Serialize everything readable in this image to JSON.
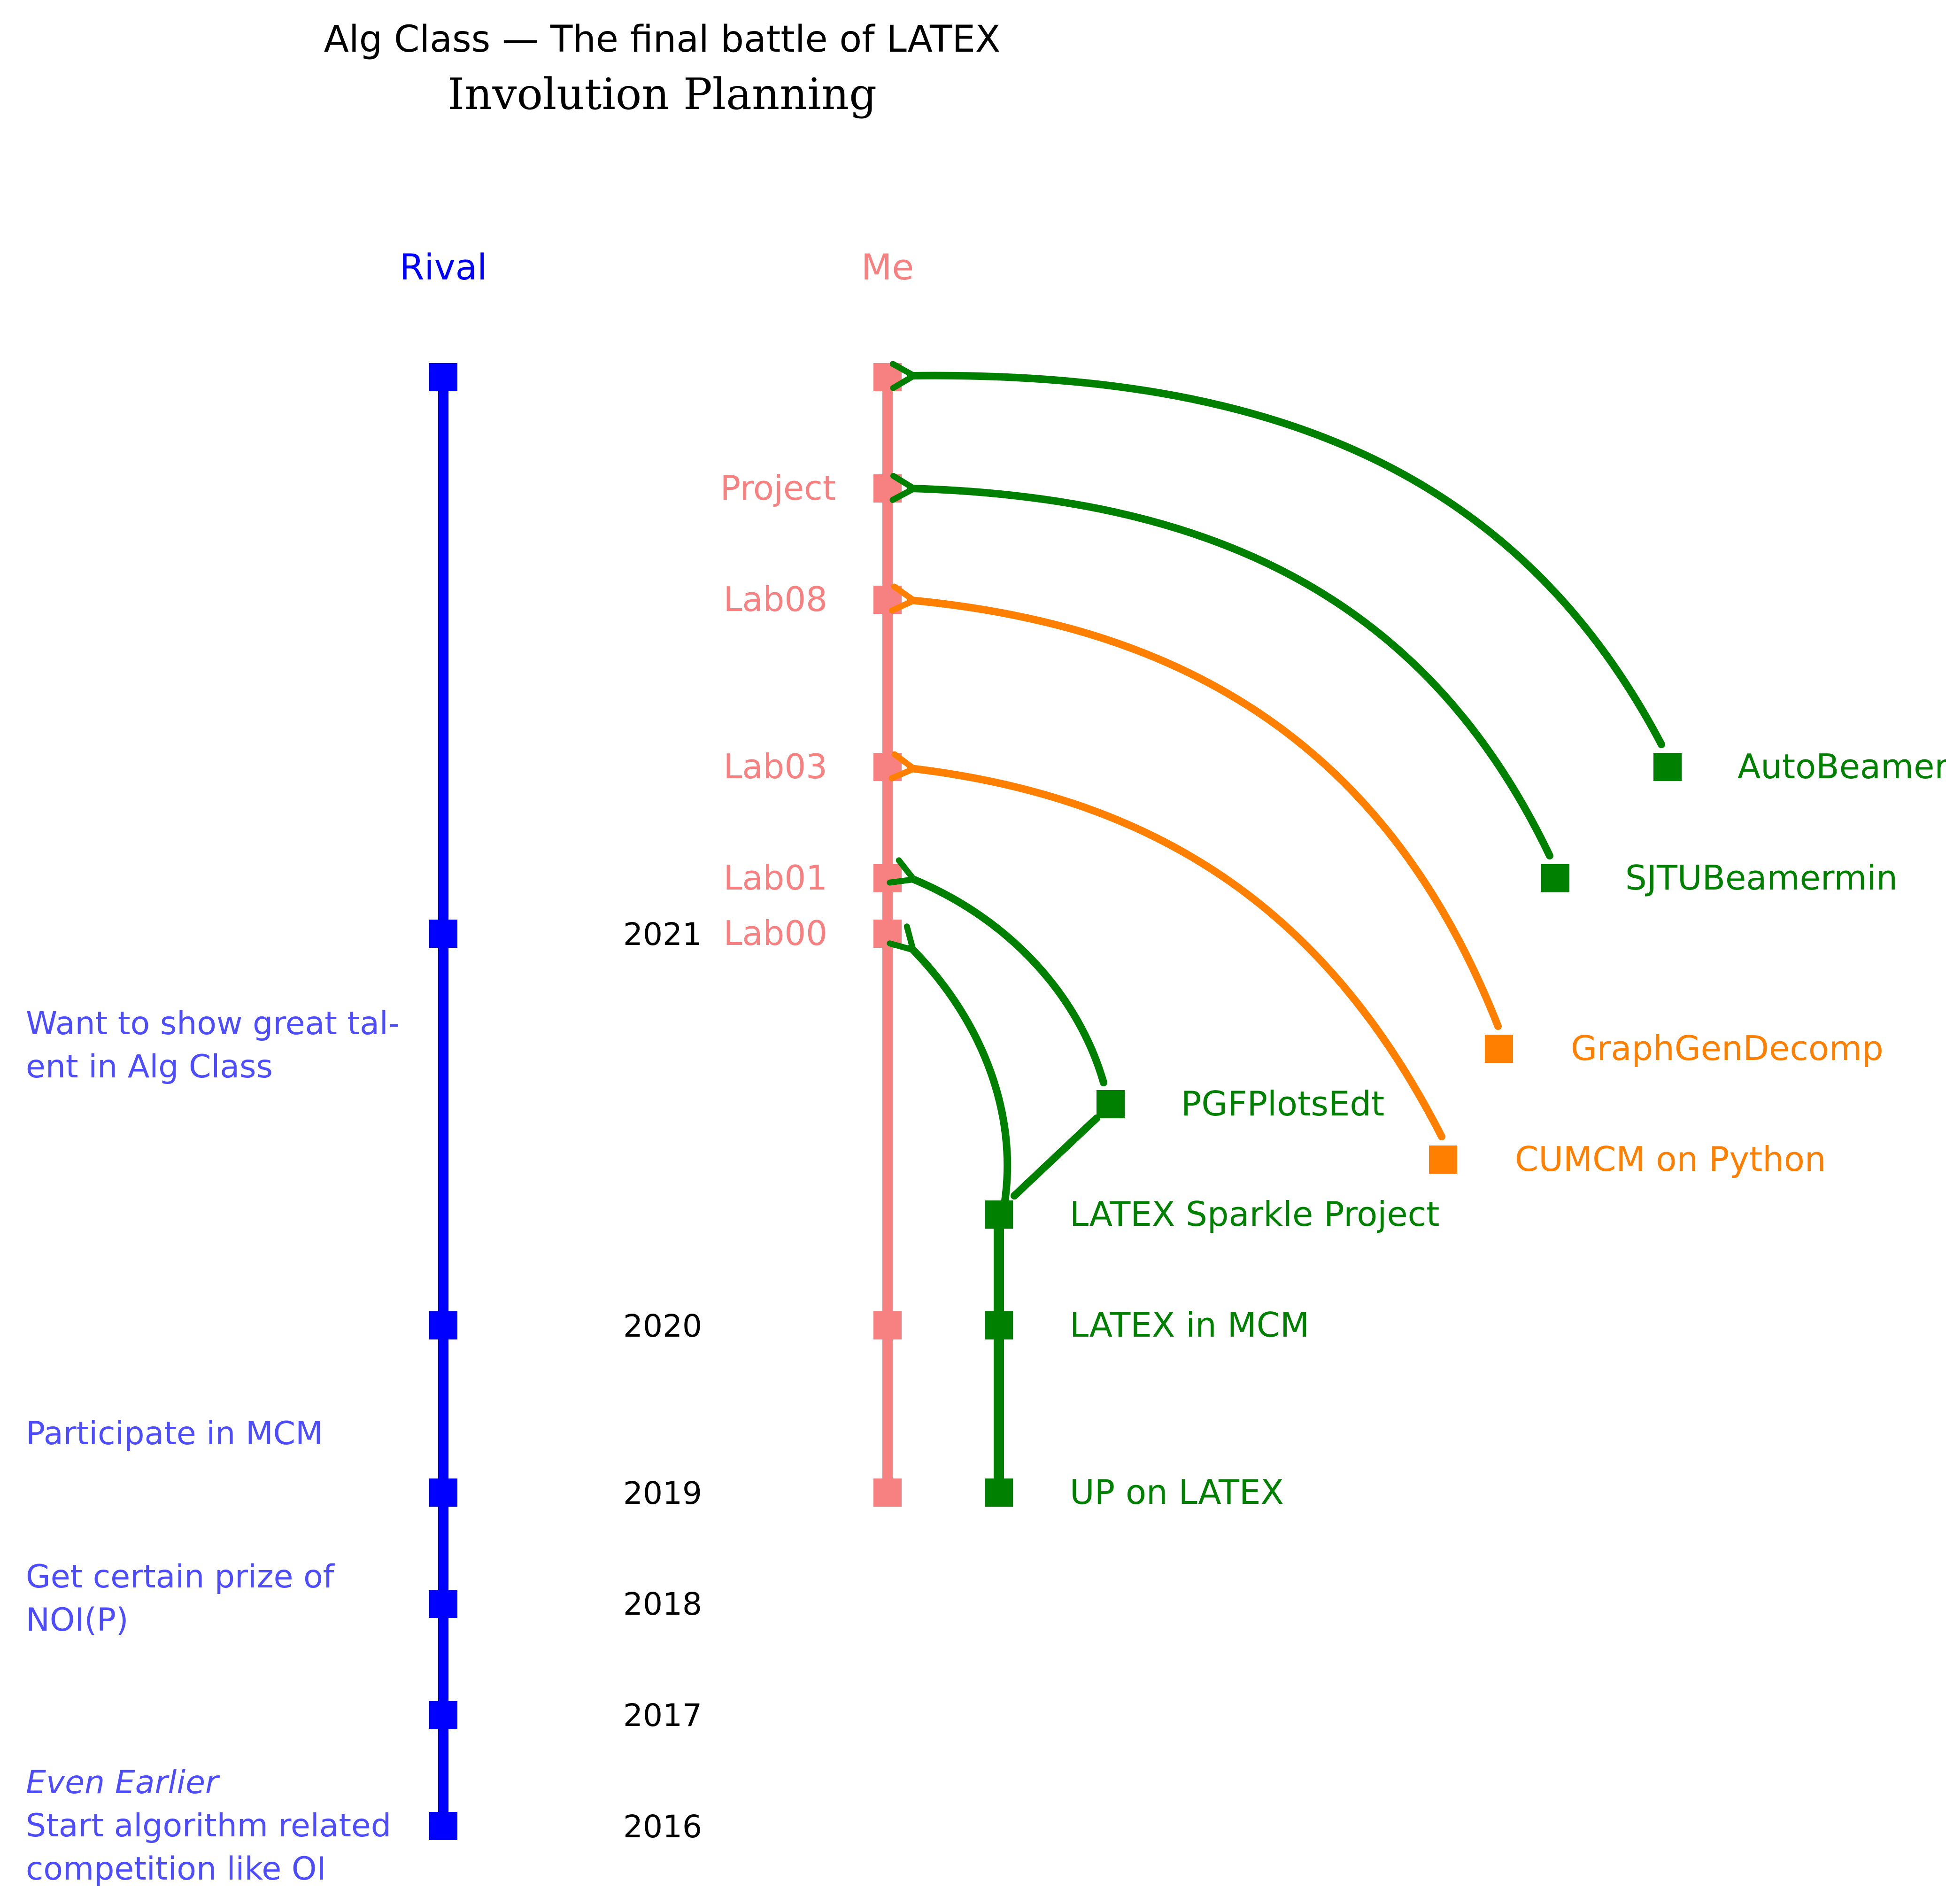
{
  "title": {
    "line1_prefix": "Alg Class — The final battle of ",
    "line1_latex": "LATEX",
    "line2": "Involution Planning"
  },
  "columns": {
    "rival": "Rival",
    "me": "Me"
  },
  "colors": {
    "rival": "#0000ff",
    "rival_text": "#4d4dff",
    "me": "#f78080",
    "green": "#008000",
    "orange": "#ff8000",
    "year_text": "#000000"
  },
  "years": [
    "2016",
    "2017",
    "2018",
    "2019",
    "2020",
    "2021"
  ],
  "rival_notes": {
    "earlier_heading": "Even Earlier",
    "start_line1": "Start algorithm related",
    "start_line2": "competition like OI",
    "noi_line1": "Get certain prize of",
    "noi_line2": "NOI(P)",
    "mcm": "Participate in MCM",
    "talent_line1": "Want to show great tal-",
    "talent_line2": "ent in Alg Class"
  },
  "me_labels": [
    "Lab00",
    "Lab01",
    "Lab03",
    "Lab08",
    "Project"
  ],
  "green_chain": {
    "up_prefix": "UP on ",
    "up_latex": "LATEX",
    "mcm_latex": "LATEX",
    "mcm_suffix": " in MCM",
    "sparkle_latex": "LATEX",
    "sparkle_suffix": " Sparkle Project"
  },
  "projects": [
    {
      "name": "PGFPlotsEdt",
      "color": "green"
    },
    {
      "name": "CUMCM on Python",
      "color": "orange"
    },
    {
      "name": "GraphGenDecomp",
      "color": "orange"
    },
    {
      "name": "SJTUBeamermin",
      "color": "green"
    },
    {
      "name": "AutoBeamer",
      "color": "green"
    }
  ]
}
